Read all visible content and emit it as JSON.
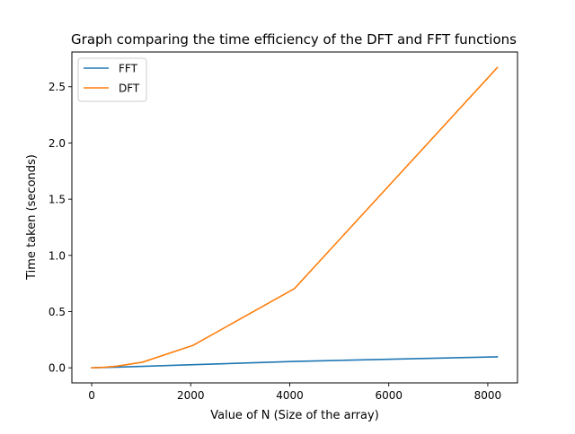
{
  "chart_data": {
    "type": "line",
    "title": "Graph comparing the time efficiency of the DFT and FFT functions",
    "xlabel": "Value of N (Size of the array)",
    "ylabel": "Time taken (seconds)",
    "xlim": [
      -400,
      8600
    ],
    "ylim": [
      -0.134,
      2.809
    ],
    "xticks": [
      0,
      2000,
      4000,
      6000,
      8000
    ],
    "xtick_labels": [
      "0",
      "2000",
      "4000",
      "6000",
      "8000"
    ],
    "yticks": [
      0.0,
      0.5,
      1.0,
      1.5,
      2.0,
      2.5
    ],
    "ytick_labels": [
      "0.0",
      "0.5",
      "1.0",
      "1.5",
      "2.0",
      "2.5"
    ],
    "grid": false,
    "legend_position": "upper-left",
    "series": [
      {
        "name": "FFT",
        "color": "#1f77b4",
        "x": [
          1,
          2,
          4,
          8,
          16,
          32,
          64,
          128,
          256,
          512,
          1024,
          2048,
          4096,
          8192
        ],
        "y": [
          0.0,
          0.0,
          0.0,
          0.0,
          0.0,
          0.0,
          0.001,
          0.002,
          0.003,
          0.006,
          0.013,
          0.028,
          0.057,
          0.098
        ]
      },
      {
        "name": "DFT",
        "color": "#ff7f0e",
        "x": [
          1,
          2,
          4,
          8,
          16,
          32,
          64,
          128,
          256,
          512,
          1024,
          2048,
          4096,
          8192
        ],
        "y": [
          0.0,
          0.0,
          0.0,
          0.0,
          0.0,
          0.0,
          0.001,
          0.002,
          0.005,
          0.015,
          0.05,
          0.2,
          0.705,
          2.67
        ]
      }
    ]
  }
}
